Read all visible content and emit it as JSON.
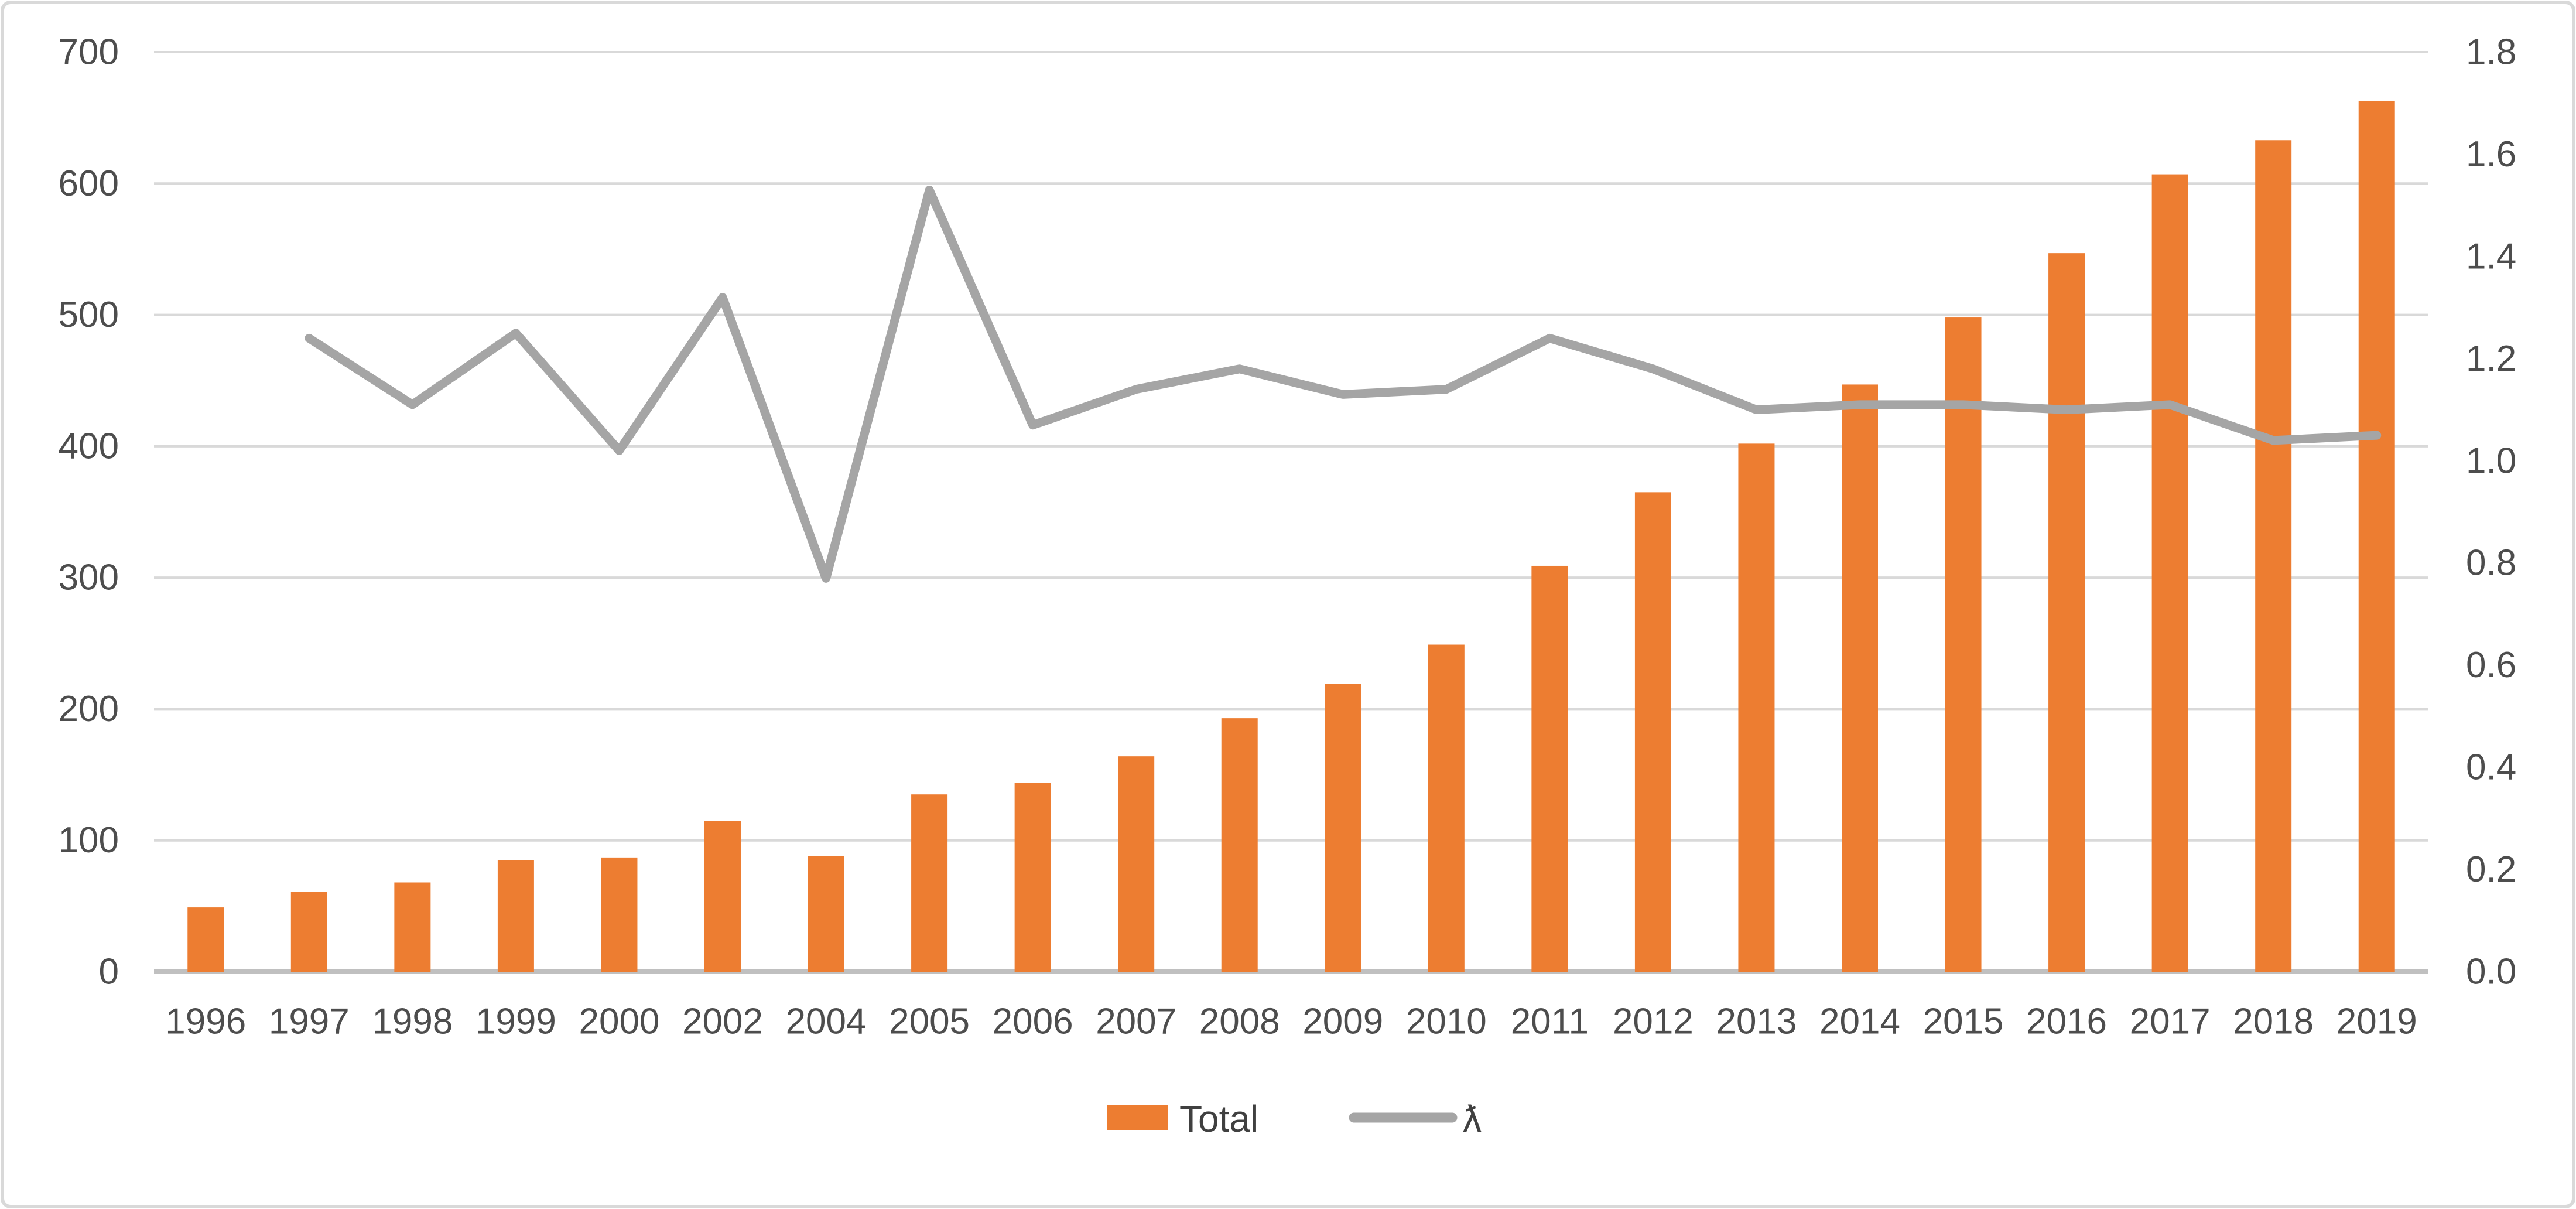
{
  "chart_data": {
    "type": "combo-bar-line",
    "title": "",
    "categories": [
      "1996",
      "1997",
      "1998",
      "1999",
      "2000",
      "2002",
      "2004",
      "2005",
      "2006",
      "2007",
      "2008",
      "2009",
      "2010",
      "2011",
      "2012",
      "2013",
      "2014",
      "2015",
      "2016",
      "2017",
      "2018",
      "2019"
    ],
    "series": [
      {
        "name": "Total",
        "type": "bar",
        "axis": "left",
        "values": [
          49,
          61,
          68,
          85,
          87,
          115,
          88,
          135,
          144,
          164,
          193,
          219,
          249,
          309,
          365,
          402,
          447,
          498,
          547,
          607,
          633,
          663
        ]
      },
      {
        "name": "ƛ",
        "type": "line",
        "axis": "right",
        "values": [
          null,
          1.24,
          1.11,
          1.25,
          1.02,
          1.32,
          0.77,
          1.53,
          1.07,
          1.14,
          1.18,
          1.13,
          1.14,
          1.24,
          1.18,
          1.1,
          1.11,
          1.11,
          1.1,
          1.11,
          1.04,
          1.05
        ]
      }
    ],
    "left_axis": {
      "min": 0,
      "max": 700,
      "step": 100,
      "tick_labels": [
        "0",
        "100",
        "200",
        "300",
        "400",
        "500",
        "600",
        "700"
      ]
    },
    "right_axis": {
      "min": 0,
      "max": 1.8,
      "step": 0.2,
      "tick_labels": [
        "0.0",
        "0.2",
        "0.4",
        "0.6",
        "0.8",
        "1.0",
        "1.2",
        "1.4",
        "1.6",
        "1.8"
      ]
    },
    "legend": {
      "position": "bottom-center",
      "items": [
        {
          "label": "Total",
          "swatch": "bar"
        },
        {
          "label": "ƛ",
          "swatch": "line"
        }
      ]
    },
    "grid": true,
    "colors": {
      "bar": "#ED7D31",
      "line": "#A5A5A5",
      "gridline": "#D9D9D9",
      "axis_line": "#C0C0C0",
      "tick_text": "#4d4d4d",
      "legend_text": "#404040",
      "border": "#D9D9D9",
      "background": "#FFFFFF"
    }
  }
}
